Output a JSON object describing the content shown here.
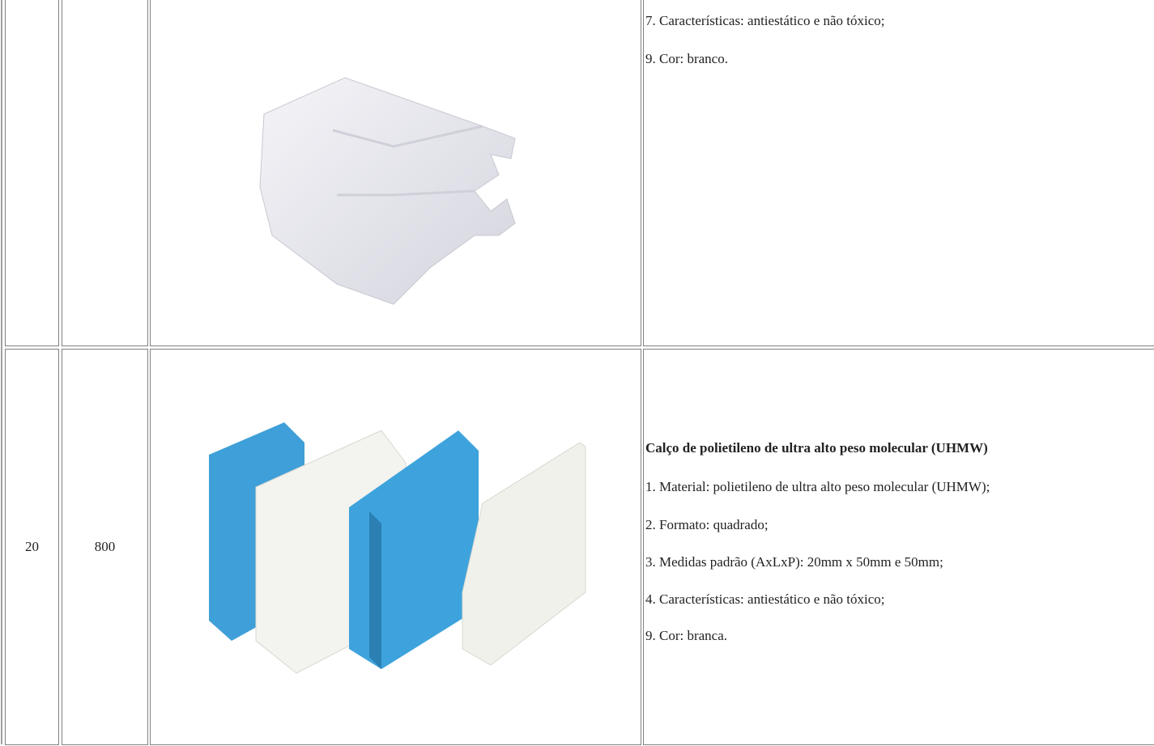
{
  "table": {
    "rows": [
      {
        "description": {
          "items": [
            "7. Características: antiestático e não tóxico;",
            "9. Cor: branco."
          ]
        }
      },
      {
        "cells": [
          "20",
          "800"
        ],
        "description": {
          "heading": "Calço de polietileno de ultra alto peso molecular (UHMW)",
          "items": [
            "1. Material: polietileno de ultra alto peso molecular (UHMW);",
            "2. Formato: quadrado;",
            "3. Medidas padrão (AxLxP): 20mm x 50mm e 50mm;",
            "4. Características: antiestático e não tóxico;",
            "9. Cor: branca."
          ]
        }
      }
    ]
  }
}
